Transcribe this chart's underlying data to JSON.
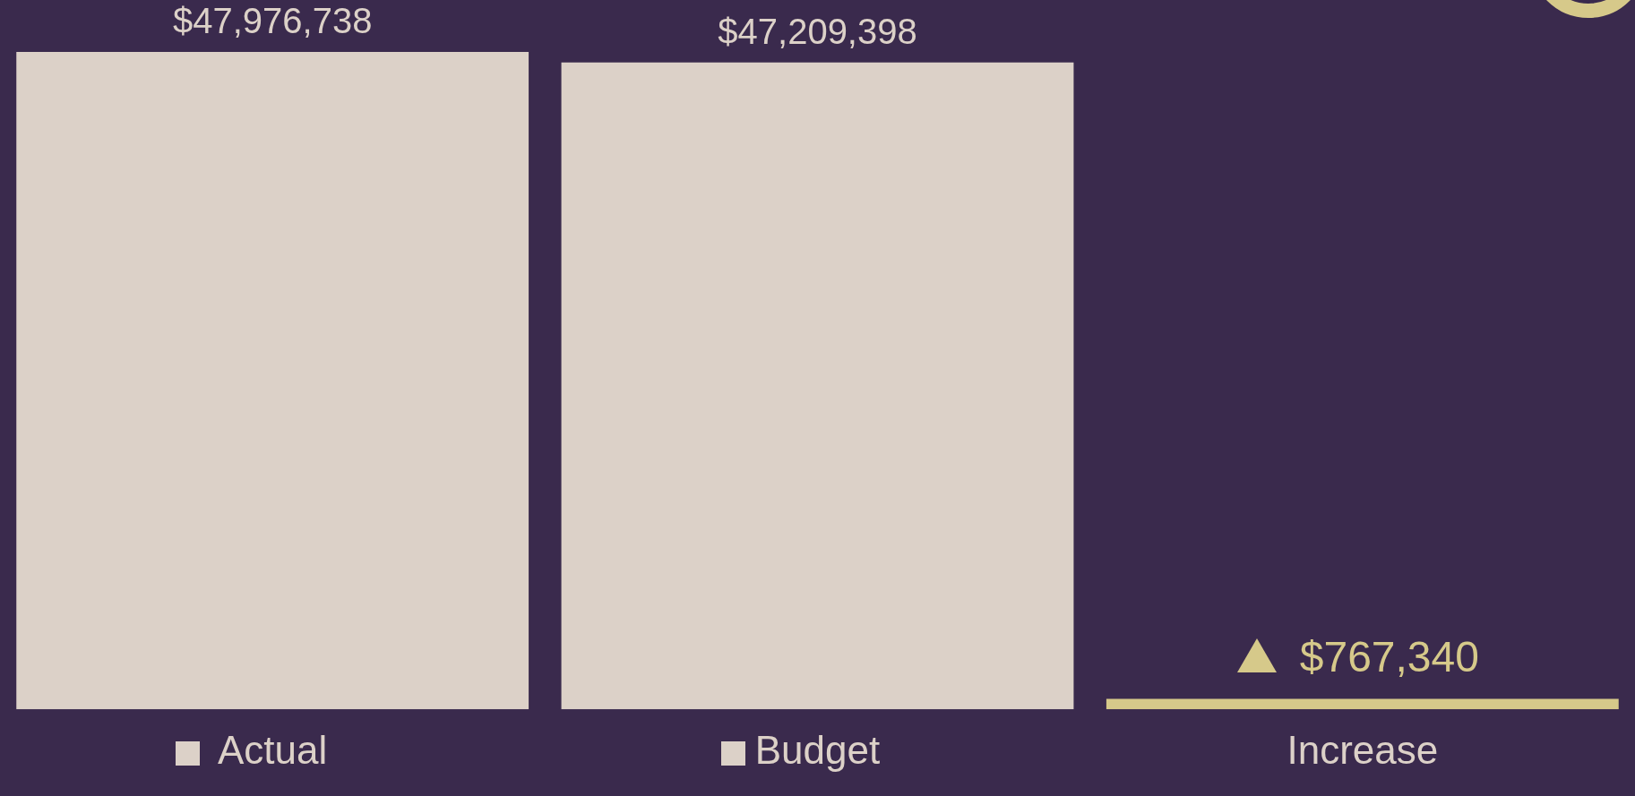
{
  "chart_data": {
    "type": "bar",
    "categories": [
      "Actual",
      "Budget",
      "Increase"
    ],
    "values": [
      47976738,
      47209398,
      767340
    ],
    "colors": [
      "#dcd1c8",
      "#dcd1c8",
      "#d6c98a"
    ],
    "value_labels": [
      "$47,976,738",
      "$47,209,398",
      "$767,340"
    ],
    "grid": false,
    "legend": false
  }
}
